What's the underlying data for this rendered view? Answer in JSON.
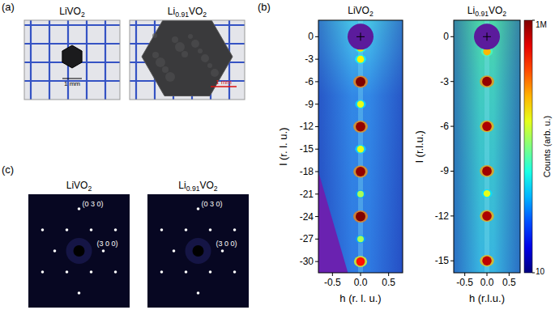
{
  "panel_labels": [
    "(a)",
    "(b)",
    "(c)"
  ],
  "photos": [
    {
      "title": "LiVO2",
      "scale_bar": "1 mm"
    },
    {
      "title": "Li0.91VO2",
      "scale_bar": "1 mm"
    }
  ],
  "chart_data": [
    {
      "type": "heatmap",
      "title": "LiVO2",
      "x_label": "h (r. l. u.)",
      "y_label": "l (r. l. u.)",
      "xlim": [
        -0.75,
        0.75
      ],
      "xticks": [
        -0.5,
        {
          "value": 0,
          "label": "0.0"
        },
        0.5
      ],
      "ylim": [
        -31.5,
        2.2
      ],
      "yticks": [
        0,
        -3,
        -6,
        -9,
        -12,
        -15,
        -18,
        -21,
        -24,
        -27,
        -30
      ],
      "peaks": {
        "h": [
          0,
          0,
          0,
          0,
          0,
          0,
          0,
          0,
          0,
          0,
          0
        ],
        "l": [
          -1.5,
          -3,
          -6,
          -9,
          -12,
          -15,
          -18,
          -21,
          -24,
          -27,
          -30
        ],
        "counts": [
          20000,
          15000,
          1000000,
          10000,
          800000,
          10000,
          800000,
          5000,
          1000000,
          5000,
          200000
        ]
      }
    },
    {
      "type": "heatmap",
      "title": "Li0.91VO2",
      "x_label": "h (r.l.u.)",
      "y_label": "l (r.l.u.)",
      "xlim": [
        -0.75,
        0.75
      ],
      "xticks": [
        -0.5,
        {
          "value": 0,
          "label": "0.0"
        },
        0.5
      ],
      "ylim": [
        -15.8,
        1.1
      ],
      "yticks": [
        0,
        -3,
        -6,
        -9,
        -12,
        -15
      ],
      "peaks": {
        "h": [
          0,
          0,
          0,
          0,
          0,
          0,
          0
        ],
        "l": [
          -1,
          -3,
          -6,
          -9,
          -10.5,
          -12,
          -15
        ],
        "counts": [
          30000,
          800000,
          600000,
          700000,
          10000,
          600000,
          500000
        ]
      },
      "colorbar": {
        "label": "Counts (arb. u.)",
        "range": [
          10,
          1000000
        ],
        "ticks": [
          {
            "value": 1000000,
            "label": "1M"
          },
          10
        ],
        "log": true
      }
    }
  ],
  "diffraction": [
    {
      "title": "LiVO2",
      "spots": [
        "(0 3 0)",
        "(3 0 0)"
      ]
    },
    {
      "title": "Li0.91VO2",
      "spots": [
        "(0 3 0)",
        "(3 0 0)"
      ]
    }
  ]
}
